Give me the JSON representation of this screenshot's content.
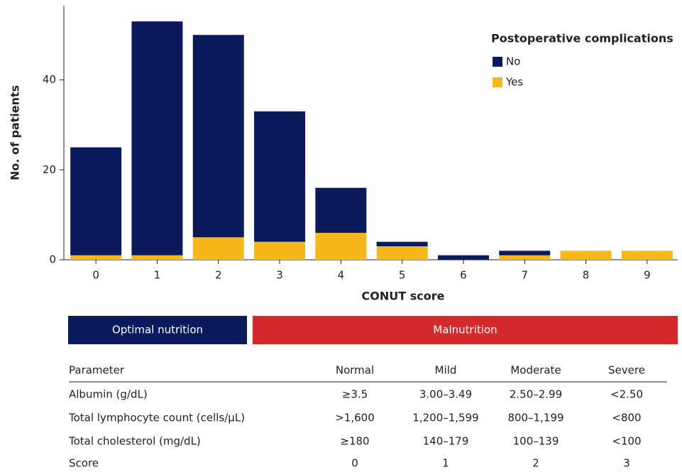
{
  "chart_data": {
    "type": "bar",
    "stacked": true,
    "x_label": "CONUT score",
    "y_label": "No. of patients",
    "legend_title": "Postoperative complications",
    "legend": "upper right",
    "categories": [
      "0",
      "1",
      "2",
      "3",
      "4",
      "5",
      "6",
      "7",
      "8",
      "9"
    ],
    "series": [
      {
        "name": "No",
        "color": "#0b1a5c",
        "values": [
          24,
          52,
          45,
          29,
          10,
          1,
          1,
          1,
          0,
          0
        ]
      },
      {
        "name": "Yes",
        "color": "#f5b71a",
        "values": [
          1,
          1,
          5,
          4,
          6,
          3,
          0,
          1,
          2,
          2
        ]
      }
    ],
    "ylim": [
      0,
      56.5
    ],
    "yticks": [
      0,
      20,
      40
    ],
    "grid": false
  },
  "nutrition_bands": [
    {
      "label": "Optimal nutrition",
      "color": "#0b1a5c"
    },
    {
      "label": "Malnutrition",
      "color": "#d42a2e"
    }
  ],
  "table": {
    "header": [
      "Parameter",
      "Normal",
      "Mild",
      "Moderate",
      "Severe"
    ],
    "rows": [
      [
        "Albumin (g/dL)",
        "≥3.5",
        "3.00–3.49",
        "2.50–2.99",
        "<2.50"
      ],
      [
        "Total lymphocyte count (cells/μL)",
        ">1,600",
        "1,200–1,599",
        "800–1,199",
        "<800"
      ],
      [
        "Total cholesterol (mg/dL)",
        "≥180",
        "140–179",
        "100–139",
        "<100"
      ],
      [
        "Score",
        "0",
        "1",
        "2",
        "3"
      ]
    ]
  }
}
